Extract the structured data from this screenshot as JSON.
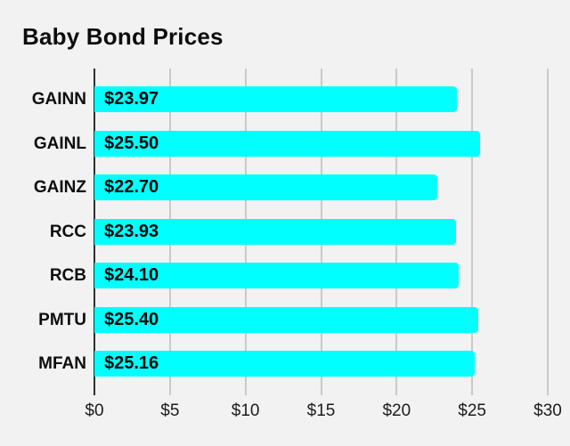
{
  "title": "Baby Bond Prices",
  "page": {
    "background_color": "#f2f2f2"
  },
  "chart_data": {
    "type": "bar",
    "orientation": "horizontal",
    "title": "Baby Bond Prices",
    "categories": [
      "GAINN",
      "GAINL",
      "GAINZ",
      "RCC",
      "RCB",
      "PMTU",
      "MFAN"
    ],
    "values": [
      23.97,
      25.5,
      22.7,
      23.93,
      24.1,
      25.4,
      25.16
    ],
    "value_labels": [
      "$23.97",
      "$25.50",
      "$22.70",
      "$23.93",
      "$24.10",
      "$25.40",
      "$25.16"
    ],
    "xlabel": "",
    "ylabel": "",
    "xlim": [
      0,
      30
    ],
    "x_ticks": [
      0,
      5,
      10,
      15,
      20,
      25,
      30
    ],
    "x_tick_labels": [
      "$0",
      "$5",
      "$10",
      "$15",
      "$20",
      "$25",
      "$30"
    ],
    "grid": "vertical",
    "legend_position": "none",
    "bar_color": "#00ffff",
    "grid_color": "#c9c9c9",
    "zero_line_color": "#2e2e2e",
    "value_label_position": "inside-start"
  }
}
